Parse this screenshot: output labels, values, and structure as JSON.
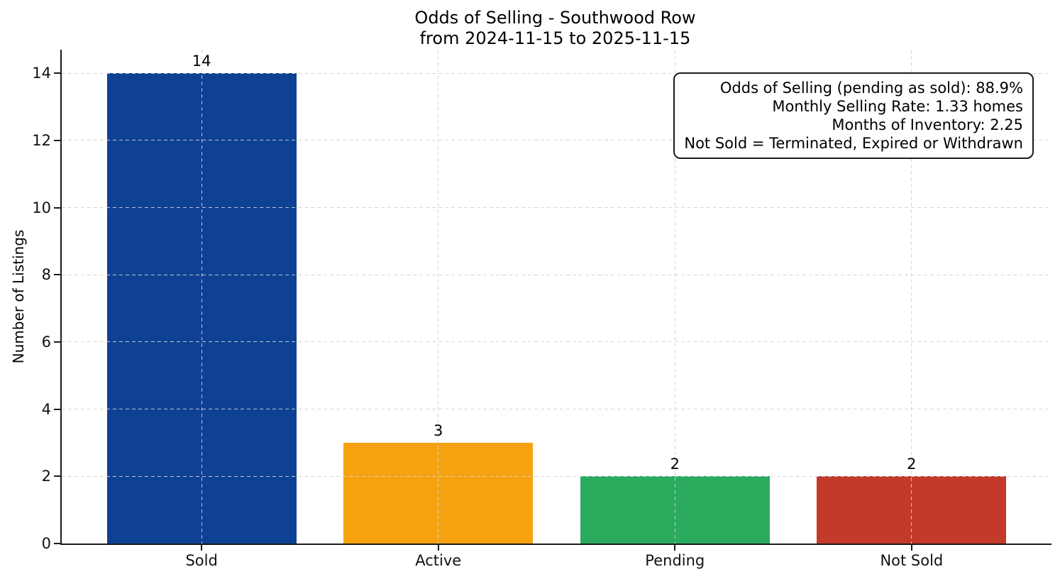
{
  "chart_data": {
    "type": "bar",
    "title": "Odds of Selling - Southwood Row",
    "subtitle": "from 2024-11-15 to 2025-11-15",
    "categories": [
      "Sold",
      "Active",
      "Pending",
      "Not Sold"
    ],
    "values": [
      14,
      3,
      2,
      2
    ],
    "bar_labels": [
      "14",
      "3",
      "2",
      "2"
    ],
    "bar_colors": [
      "#0e4194",
      "#f6a210",
      "#2aab5e",
      "#c33a2b"
    ],
    "xlabel": "",
    "ylabel": "Number of Listings",
    "ylim": [
      0,
      14.7
    ],
    "yticks": [
      0,
      2,
      4,
      6,
      8,
      10,
      12,
      14
    ],
    "grid": "dashed, both axes, drawn over bars",
    "legend_position": "none",
    "spines": "left and bottom only"
  },
  "annotation_box": {
    "lines": [
      "Odds of Selling (pending as sold): 88.9%",
      "Monthly Selling Rate: 1.33 homes",
      "Months of Inventory: 2.25",
      "Not Sold = Terminated, Expired or Withdrawn"
    ]
  },
  "colors": {
    "background": "#ffffff",
    "spine": "#1a1a1a",
    "grid": "#d2d2d2",
    "text": "#000000"
  }
}
